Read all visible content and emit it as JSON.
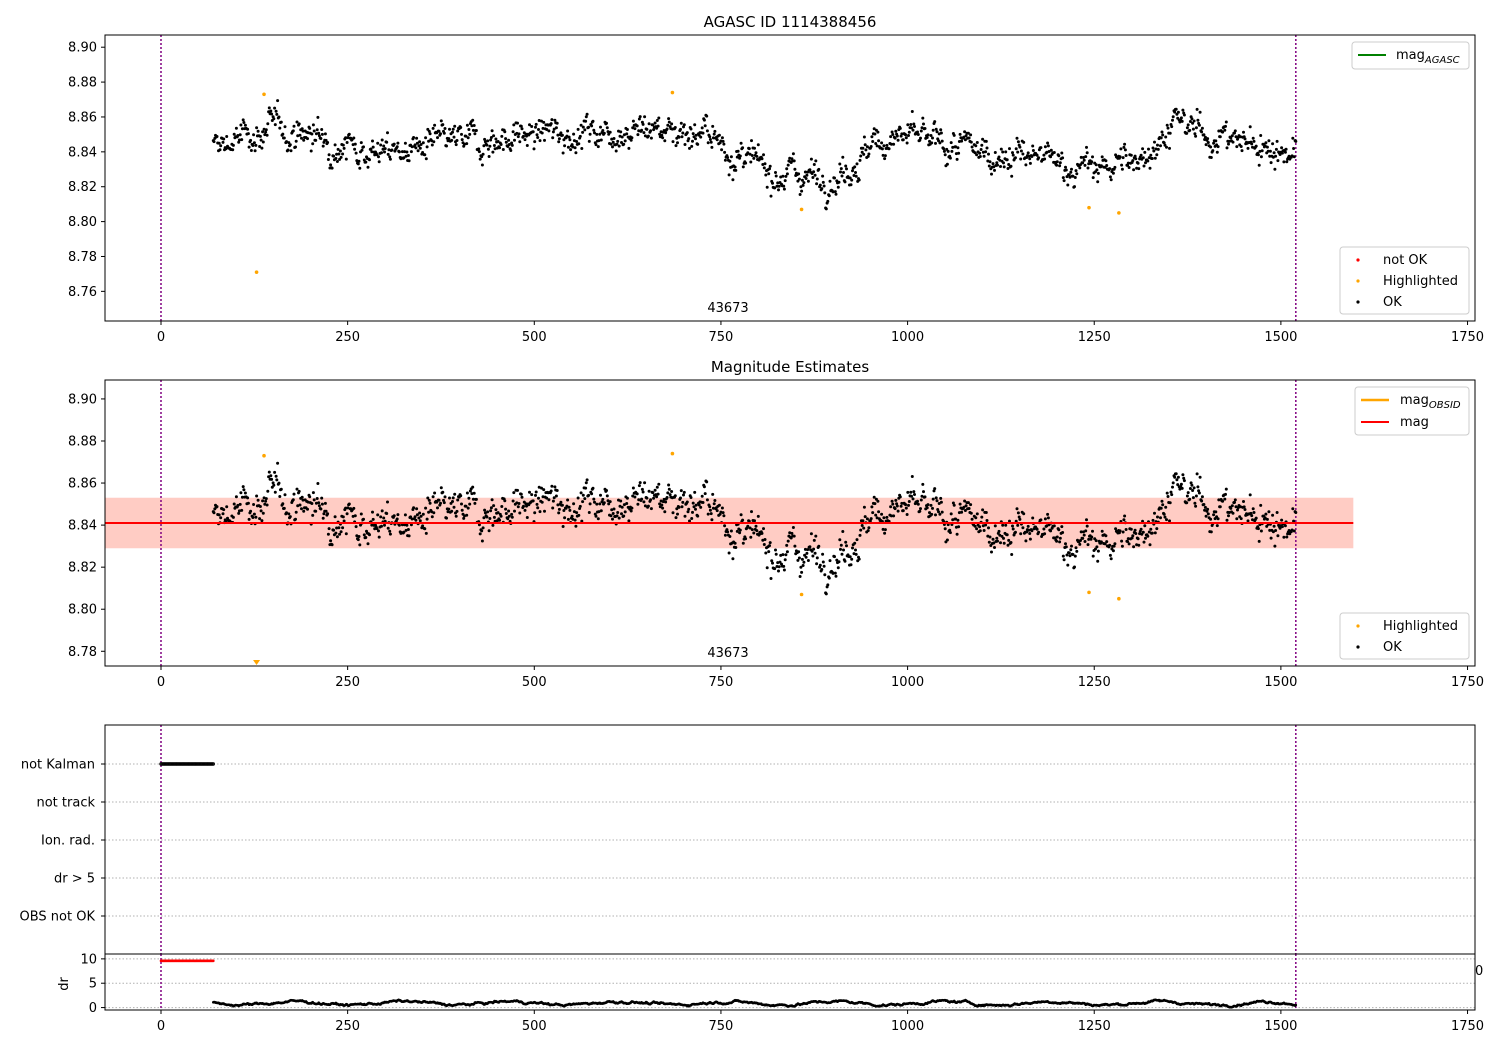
{
  "colors": {
    "ok": "#000000",
    "highlighted": "#ffa500",
    "not_ok": "#ff0000",
    "mag_agasc": "#008000",
    "mag_obsid": "#ffa500",
    "mag": "#ff0000",
    "obs_boundary": "#800080",
    "band_fill": "#ff9966",
    "band_edge": "#ffb6c1"
  },
  "chart_data": [
    {
      "type": "scatter",
      "title": "AGASC ID 1114388456",
      "xlim": [
        -75,
        1760
      ],
      "ylim": [
        8.743,
        8.907
      ],
      "xticks": [
        0,
        250,
        500,
        750,
        1000,
        1250,
        1500,
        1750
      ],
      "yticks": [
        8.76,
        8.78,
        8.8,
        8.82,
        8.84,
        8.86,
        8.88,
        8.9
      ],
      "grid": false,
      "obsid_label": "43673",
      "obs_boundaries": [
        0,
        1520
      ],
      "legend_lines": [
        {
          "name": "mag",
          "subscript": "AGASC",
          "color_key": "mag_agasc"
        }
      ],
      "legend_points": [
        {
          "name": "not OK",
          "color_key": "not_ok"
        },
        {
          "name": "Highlighted",
          "color_key": "highlighted"
        },
        {
          "name": "OK",
          "color_key": "ok"
        }
      ],
      "series": [
        {
          "name": "OK",
          "n": 1449,
          "x_range": [
            70,
            1520
          ],
          "level": 8.842,
          "scatter": 0.009,
          "trend": [
            [
              70,
              0.0
            ],
            [
              150,
              0.012
            ],
            [
              300,
              -0.002
            ],
            [
              500,
              0.008
            ],
            [
              650,
              0.012
            ],
            [
              720,
              0.01
            ],
            [
              800,
              -0.012
            ],
            [
              900,
              -0.016
            ],
            [
              980,
              0.008
            ],
            [
              1060,
              0.0
            ],
            [
              1150,
              -0.004
            ],
            [
              1240,
              -0.012
            ],
            [
              1300,
              -0.008
            ],
            [
              1360,
              0.014
            ],
            [
              1420,
              0.006
            ],
            [
              1520,
              -0.002
            ]
          ]
        },
        {
          "name": "Highlighted",
          "points": [
            [
              128,
              8.771
            ],
            [
              138,
              8.873
            ],
            [
              685,
              8.874
            ],
            [
              858,
              8.807
            ],
            [
              1243,
              8.808
            ],
            [
              1283,
              8.805
            ]
          ]
        }
      ]
    },
    {
      "type": "scatter",
      "title": "Magnitude Estimates",
      "xlim": [
        -75,
        1760
      ],
      "ylim": [
        8.773,
        8.909
      ],
      "xticks": [
        0,
        250,
        500,
        750,
        1000,
        1250,
        1500,
        1750
      ],
      "yticks": [
        8.78,
        8.8,
        8.82,
        8.84,
        8.86,
        8.88,
        8.9
      ],
      "grid": false,
      "obsid_label": "43673",
      "obs_boundaries": [
        0,
        1520
      ],
      "mag": 8.841,
      "mag_band": [
        8.829,
        8.853
      ],
      "band_x": [
        -75,
        1597
      ],
      "legend_lines": [
        {
          "name": "mag",
          "subscript": "OBSID",
          "color_key": "mag_obsid"
        },
        {
          "name": "mag",
          "subscript": "",
          "color_key": "mag"
        }
      ],
      "legend_points": [
        {
          "name": "Highlighted",
          "color_key": "highlighted"
        },
        {
          "name": "OK",
          "color_key": "ok"
        }
      ],
      "series": [
        {
          "name": "OK",
          "n": 1449,
          "x_range": [
            70,
            1520
          ],
          "level": 8.842,
          "scatter": 0.009,
          "trend": [
            [
              70,
              0.0
            ],
            [
              150,
              0.012
            ],
            [
              300,
              -0.002
            ],
            [
              500,
              0.008
            ],
            [
              650,
              0.012
            ],
            [
              720,
              0.01
            ],
            [
              800,
              -0.012
            ],
            [
              900,
              -0.016
            ],
            [
              980,
              0.008
            ],
            [
              1060,
              0.0
            ],
            [
              1150,
              -0.004
            ],
            [
              1240,
              -0.012
            ],
            [
              1300,
              -0.008
            ],
            [
              1360,
              0.014
            ],
            [
              1420,
              0.006
            ],
            [
              1520,
              -0.002
            ]
          ]
        },
        {
          "name": "Highlighted",
          "points": [
            [
              138,
              8.873
            ],
            [
              685,
              8.874
            ],
            [
              858,
              8.807
            ],
            [
              1243,
              8.808
            ],
            [
              1283,
              8.805
            ]
          ]
        },
        {
          "name": "Highlighted below axis",
          "points": [
            [
              128,
              8.773
            ]
          ]
        }
      ]
    },
    {
      "type": "scatter",
      "title": "",
      "xlim": [
        -75,
        1760
      ],
      "categories": [
        "not Kalman",
        "not track",
        "Ion. rad.",
        "dr > 5",
        "OBS not OK"
      ],
      "obs_boundaries": [
        0,
        1520
      ],
      "flag_points": [
        {
          "category": "not Kalman",
          "x_range": [
            0,
            70
          ],
          "n": 60
        }
      ]
    },
    {
      "type": "scatter",
      "title": "",
      "ylabel": "dr",
      "xlim": [
        -75,
        1760
      ],
      "ylim": [
        -0.5,
        11
      ],
      "xticks": [
        0,
        250,
        500,
        750,
        1000,
        1250,
        1500,
        1750
      ],
      "yticks": [
        0,
        5,
        10
      ],
      "obs_boundaries": [
        0,
        1520
      ],
      "corner_text": "0",
      "series": [
        {
          "name": "dr > 5",
          "x_range": [
            0,
            70
          ],
          "n": 60,
          "value": 9.6
        },
        {
          "name": "OK",
          "x_range": [
            70,
            1520
          ],
          "n": 1449,
          "level": 0.9,
          "scatter": 0.35
        }
      ]
    }
  ]
}
